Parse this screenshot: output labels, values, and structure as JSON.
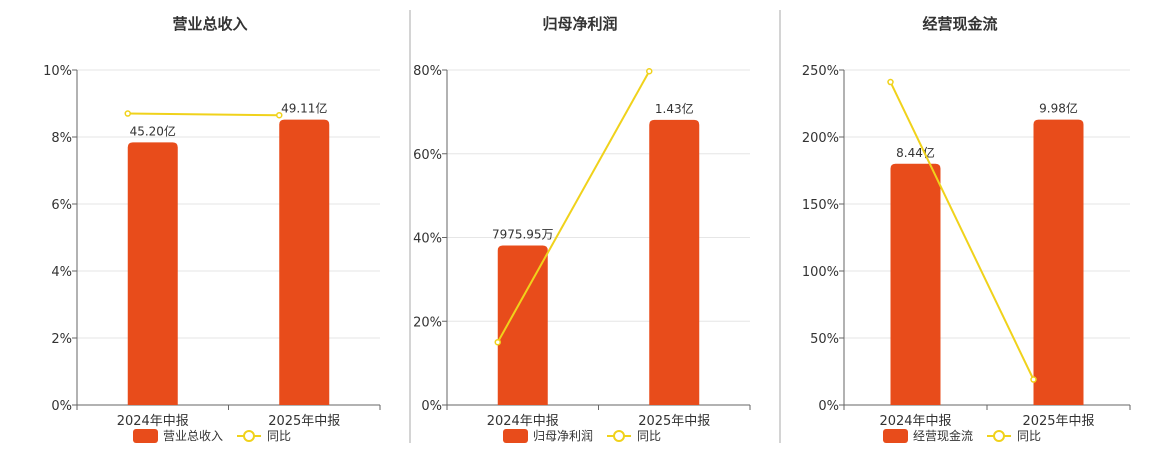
{
  "colors": {
    "bar": "#e84c1b",
    "line": "#f0d21b",
    "grid": "#e6e6e6",
    "axis": "#666666",
    "divider": "#aaaaaa"
  },
  "chart_data": [
    {
      "type": "bar",
      "title": "营业总收入",
      "categories": [
        "2024年中报",
        "2025年中报"
      ],
      "series": [
        {
          "name": "营业总收入",
          "kind": "bar",
          "values": [
            7.84,
            8.52
          ],
          "labels": [
            "45.20亿",
            "49.11亿"
          ]
        },
        {
          "name": "同比",
          "kind": "line",
          "values": [
            8.7,
            8.65
          ]
        }
      ],
      "ylim": [
        0,
        10
      ],
      "yticks": [
        "0%",
        "2%",
        "4%",
        "6%",
        "8%",
        "10%"
      ],
      "grid": true,
      "legend": "bottom"
    },
    {
      "type": "bar",
      "title": "归母净利润",
      "categories": [
        "2024年中报",
        "2025年中报"
      ],
      "series": [
        {
          "name": "归母净利润",
          "kind": "bar",
          "values": [
            38.1,
            68.1
          ],
          "labels": [
            "7975.95万",
            "1.43亿"
          ]
        },
        {
          "name": "同比",
          "kind": "line",
          "values": [
            15.0,
            79.7
          ]
        }
      ],
      "ylim": [
        0,
        80
      ],
      "yticks": [
        "0%",
        "20%",
        "40%",
        "60%",
        "80%"
      ],
      "grid": true,
      "legend": "bottom"
    },
    {
      "type": "bar",
      "title": "经营现金流",
      "categories": [
        "2024年中报",
        "2025年中报"
      ],
      "series": [
        {
          "name": "经营现金流",
          "kind": "bar",
          "values": [
            180,
            213
          ],
          "labels": [
            "8.44亿",
            "9.98亿"
          ]
        },
        {
          "name": "同比",
          "kind": "line",
          "values": [
            241,
            19
          ]
        }
      ],
      "ylim": [
        0,
        250
      ],
      "yticks": [
        "0%",
        "50%",
        "100%",
        "150%",
        "200%",
        "250%"
      ],
      "grid": true,
      "legend": "bottom"
    }
  ]
}
